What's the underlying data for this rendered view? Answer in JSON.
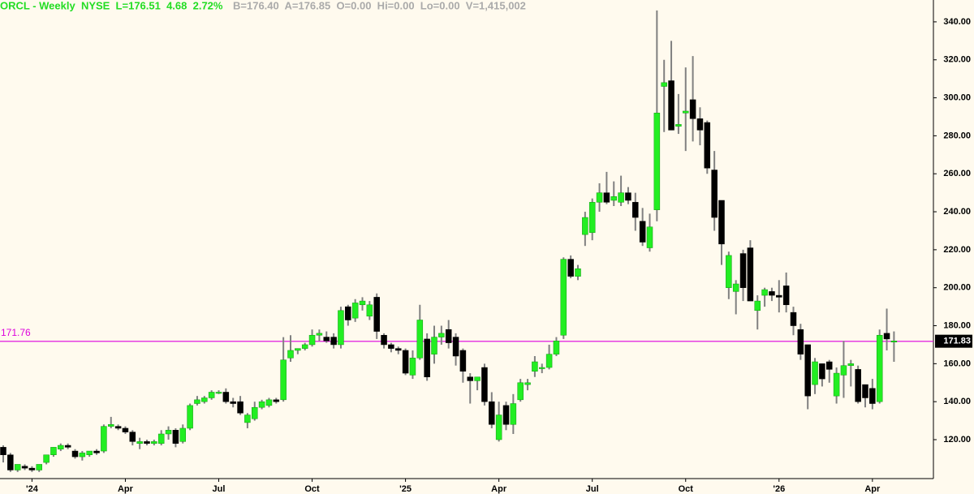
{
  "chart_data": {
    "type": "candlestick",
    "title": "ORCL - Weekly  NYSE  L=176.51  4.68  2.72%",
    "subtitle": "B=176.40  A=176.85  O=0.00  Hi=0.00  Lo=0.00  V=1,415,002",
    "categories": [
      null,
      null,
      null,
      null,
      "'24",
      null,
      null,
      null,
      null,
      null,
      null,
      null,
      null,
      null,
      null,
      null,
      null,
      "Apr",
      null,
      null,
      null,
      null,
      null,
      null,
      null,
      null,
      null,
      null,
      null,
      null,
      "Jul",
      null,
      null,
      null,
      null,
      null,
      null,
      null,
      null,
      null,
      null,
      null,
      null,
      "Oct",
      null,
      null,
      null,
      null,
      null,
      null,
      null,
      null,
      null,
      null,
      null,
      null,
      "'25",
      null,
      null,
      null,
      null,
      null,
      null,
      null,
      null,
      null,
      null,
      null,
      null,
      "Apr",
      null,
      null,
      null,
      null,
      null,
      null,
      null,
      null,
      null,
      null,
      null,
      null,
      "Jul",
      null,
      null,
      null,
      null,
      null,
      null,
      null,
      null,
      null,
      null,
      null,
      null,
      "Oct",
      null,
      null,
      null,
      null,
      null,
      null,
      null,
      null,
      null,
      null,
      null,
      null,
      "'26",
      null,
      null,
      null,
      null,
      null,
      null,
      null,
      null,
      null,
      null,
      null,
      null,
      "Apr",
      null,
      null,
      null
    ],
    "open": [
      116,
      112,
      104,
      106,
      105,
      104,
      108,
      112,
      115,
      117,
      114,
      111,
      112,
      114,
      114,
      127,
      127,
      126,
      124,
      118,
      119,
      118,
      118,
      123,
      125,
      119,
      126,
      139,
      140,
      142,
      145,
      145,
      140,
      140,
      129,
      131,
      137,
      138,
      141,
      141,
      163,
      167,
      168,
      170,
      175,
      174,
      174,
      170,
      190,
      184,
      191,
      185,
      195,
      175,
      170,
      168,
      167,
      154,
      163,
      173,
      165,
      174,
      178,
      174,
      167,
      153,
      151,
      158,
      140,
      120,
      138,
      128,
      141,
      149,
      156,
      158,
      158,
      165,
      175,
      215,
      206,
      228,
      229,
      245,
      250,
      246,
      245,
      250,
      245,
      235,
      221,
      241,
      306,
      309,
      285,
      292,
      299,
      289,
      287,
      262,
      246,
      200,
      198,
      218,
      221,
      188,
      196,
      198,
      196,
      201,
      187,
      178,
      170,
      149,
      160,
      161,
      143,
      154,
      159,
      157,
      149,
      147,
      140,
      176,
      172
    ],
    "high": [
      117,
      113,
      107,
      107,
      106,
      107,
      112,
      116,
      118,
      118,
      115,
      114,
      114,
      115,
      128,
      132,
      128,
      127,
      125,
      121,
      120,
      120,
      125,
      127,
      126,
      128,
      139,
      143,
      143,
      146,
      146,
      147,
      142,
      143,
      134,
      140,
      141,
      142,
      142,
      174,
      175,
      168,
      171,
      178,
      178,
      177,
      176,
      190,
      191,
      194,
      195,
      193,
      197,
      176,
      171,
      169,
      168,
      167,
      191,
      176,
      180,
      180,
      183,
      176,
      168,
      155,
      153,
      160,
      145,
      140,
      140,
      144,
      152,
      152,
      164,
      160,
      170,
      174,
      216,
      217,
      212,
      240,
      247,
      255,
      261,
      256,
      259,
      253,
      250,
      242,
      239,
      346,
      320,
      330,
      302,
      316,
      322,
      295,
      288,
      272,
      246,
      219,
      204,
      220,
      225,
      196,
      200,
      200,
      204,
      208,
      190,
      181,
      170,
      163,
      160,
      162,
      158,
      172,
      162,
      159,
      149,
      152,
      178,
      189,
      177
    ],
    "low": [
      108,
      103,
      103,
      104,
      103,
      103,
      107,
      111,
      114,
      115,
      110,
      109,
      111,
      112,
      113,
      126,
      125,
      123,
      117,
      115,
      117,
      117,
      117,
      120,
      116,
      118,
      125,
      138,
      139,
      141,
      144,
      139,
      137,
      133,
      126,
      130,
      136,
      137,
      139,
      140,
      161,
      165,
      167,
      169,
      172,
      171,
      168,
      168,
      180,
      182,
      188,
      183,
      173,
      168,
      166,
      165,
      154,
      152,
      162,
      151,
      160,
      170,
      168,
      159,
      150,
      139,
      146,
      138,
      126,
      119,
      125,
      123,
      140,
      146,
      153,
      155,
      157,
      164,
      173,
      205,
      204,
      222,
      225,
      240,
      244,
      243,
      243,
      244,
      230,
      222,
      219,
      235,
      282,
      283,
      281,
      272,
      277,
      275,
      260,
      230,
      212,
      194,
      186,
      193,
      193,
      178,
      190,
      193,
      187,
      187,
      175,
      162,
      136,
      144,
      148,
      150,
      139,
      142,
      148,
      139,
      137,
      136,
      139,
      167,
      161
    ],
    "close": [
      112,
      104,
      107,
      105,
      104,
      107,
      112,
      116,
      117,
      116,
      111,
      113,
      114,
      113,
      127,
      128,
      126,
      124,
      119,
      119,
      118,
      119,
      123,
      125,
      118,
      126,
      138,
      141,
      142,
      145,
      145,
      140,
      139,
      134,
      133,
      137,
      140,
      141,
      140,
      162,
      167,
      168,
      170,
      175,
      176,
      172,
      170,
      188,
      183,
      192,
      193,
      191,
      177,
      170,
      168,
      167,
      155,
      163,
      183,
      153,
      174,
      176,
      171,
      164,
      156,
      151,
      153,
      140,
      128,
      133,
      128,
      139,
      150,
      150,
      161,
      158,
      165,
      172,
      215,
      206,
      210,
      237,
      245,
      250,
      245,
      248,
      250,
      246,
      237,
      224,
      232,
      292,
      308,
      283,
      286,
      293,
      289,
      283,
      263,
      237,
      223,
      217,
      202,
      200,
      193,
      193,
      199,
      196,
      195,
      191,
      180,
      165,
      143,
      161,
      152,
      157,
      155,
      159,
      160,
      140,
      142,
      139,
      175,
      173,
      172
    ],
    "up_color": "#22ee22",
    "down_color": "#000000",
    "wick_color": "#808080",
    "ylim": [
      99.5,
      351.5
    ],
    "yticks": [
      {
        "value": 120,
        "label": "120.00"
      },
      {
        "value": 140,
        "label": "140.00"
      },
      {
        "value": 160,
        "label": "160.00"
      },
      {
        "value": 180,
        "label": "180.00"
      },
      {
        "value": 200,
        "label": "200.00"
      },
      {
        "value": 220,
        "label": "220.00"
      },
      {
        "value": 240,
        "label": "240.00"
      },
      {
        "value": 260,
        "label": "260.00"
      },
      {
        "value": 280,
        "label": "280.00"
      },
      {
        "value": 300,
        "label": "300.00"
      },
      {
        "value": 320,
        "label": "320.00"
      },
      {
        "value": 340,
        "label": "340.00"
      }
    ],
    "reference_line": {
      "value": 171.76,
      "color": "#dd00dd"
    },
    "last_price": 171.83
  }
}
